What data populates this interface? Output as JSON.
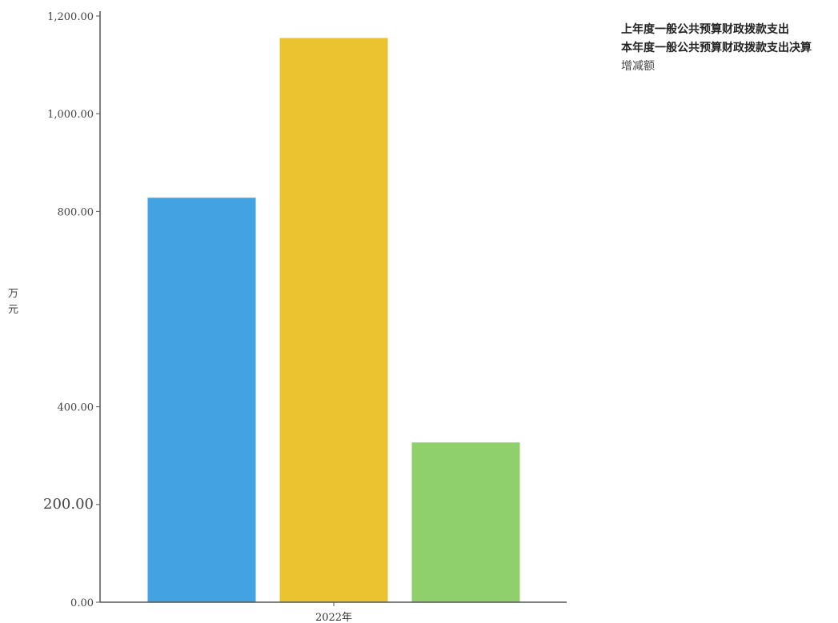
{
  "chart_data": {
    "type": "bar",
    "categories": [
      "2022年"
    ],
    "series": [
      {
        "name": "上年度一般公共预算财政拨款支出",
        "values": [
          828.0
        ],
        "color": "#42a2e2"
      },
      {
        "name": "本年度一般公共预算财政拨款支出决算",
        "values": [
          1155.0
        ],
        "color": "#ebc22f"
      },
      {
        "name": "增减额",
        "values": [
          327.0
        ],
        "color": "#90d06c"
      }
    ],
    "ylabel": "万元",
    "ylim": [
      0,
      1200
    ],
    "yticks": [
      "0.00",
      "200.00",
      "400.00",
      "800.00",
      "1,000.00",
      "1,200.00"
    ],
    "ytick_values": [
      0,
      200,
      400,
      800,
      1000,
      1200
    ],
    "grid": false,
    "legend_position": "top-right"
  }
}
